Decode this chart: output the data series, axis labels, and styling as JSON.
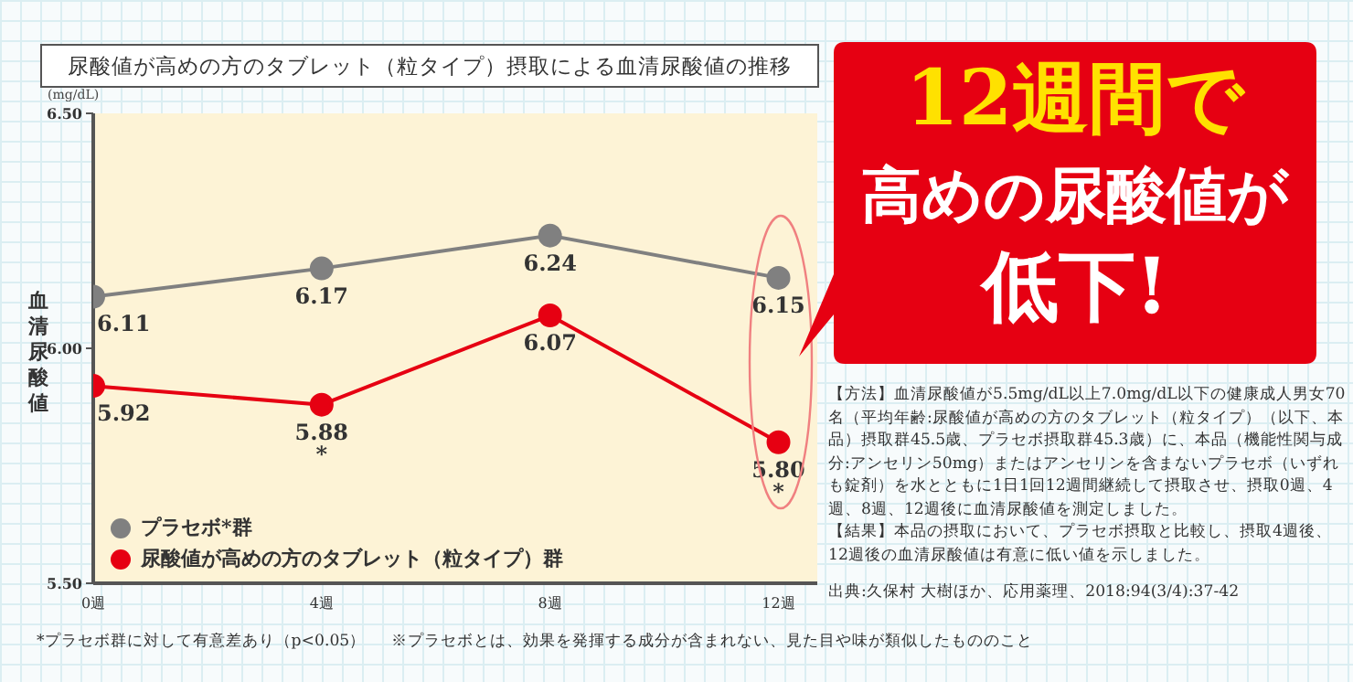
{
  "chart_data": {
    "type": "line",
    "title": "尿酸値が高めの方のタブレット（粒タイプ）摂取による血清尿酸値の推移",
    "ylabel": "血清尿酸値",
    "categories": [
      "0週",
      "4週",
      "8週",
      "12週"
    ],
    "series": [
      {
        "name": "プラセボ*群",
        "color": "#808080",
        "values": [
          6.11,
          6.17,
          6.24,
          6.15
        ],
        "value_labels": [
          "6.11",
          "6.17",
          "6.24",
          "6.15"
        ]
      },
      {
        "name": "尿酸値が高めの方のタブレット（粒タイプ）群",
        "color": "#e60012",
        "values": [
          5.92,
          5.88,
          6.07,
          5.8
        ],
        "value_labels": [
          "5.92",
          "5.88\n*",
          "6.07",
          "5.80\n*"
        ]
      }
    ],
    "ylim": [
      5.5,
      6.5
    ],
    "yticks": [
      {
        "value": 5.5,
        "label": "5.50"
      },
      {
        "value": 6.0,
        "label": "6.00"
      },
      {
        "value": 6.5,
        "label": "6.50"
      }
    ],
    "grid": false,
    "legend": "bottom left",
    "marker": "circle",
    "line_style": "solid",
    "annotations": [
      "(mg/dL)",
      "12週間で",
      "高めの尿酸値が",
      "低下!",
      "【方法】血清尿酸値が5.5mg/dL以上7.0mg/dL以下の健康成人男女70名（平均年齢:尿酸値が高めの方のタブレット（粒タイプ）（以下、本品）摂取群45.5歳、プラセボ摂取群45.3歳）に、本品（機能性関与成分:アンセリン50mg）またはアンセリンを含まないプラセボ（いずれも錠剤）を水とともに1日1回12週間継続して摂取させ、摂取0週、4週、8週、12週後に血清尿酸値を測定しました。",
      "【結果】本品の摂取において、プラセボ摂取と比較し、摂取4週後、12週後の血清尿酸値は有意に低い値を示しました。",
      "出典:久保村 大樹ほか、応用薬理、2018:94(3/4):37-42",
      "*プラセボ群に対して有意差あり（p<0.05）",
      "※プラセボとは、効果を発揮する成分が含まれない、見た目や味が類似したもののこと"
    ]
  }
}
